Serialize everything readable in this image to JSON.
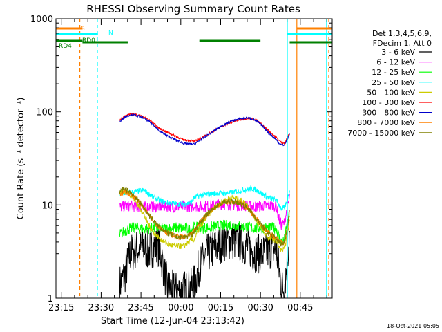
{
  "chart_data": {
    "type": "line",
    "title": "RHESSI Observing Summary Count Rates",
    "xlabel": "Start Time (12-Jun-04 23:13:42)",
    "ylabel": "Count Rate (s⁻¹ detector⁻¹)",
    "yscale": "log",
    "ylim": [
      1,
      1000
    ],
    "xlim_minutes": [
      -2,
      102
    ],
    "y_ticks": [
      {
        "value": 1,
        "label": "1"
      },
      {
        "value": 10,
        "label": "10"
      },
      {
        "value": 100,
        "label": "100"
      },
      {
        "value": 1000,
        "label": "1000"
      }
    ],
    "x_ticks": [
      {
        "minutes": 0,
        "label": "23:15"
      },
      {
        "minutes": 15,
        "label": "23:30"
      },
      {
        "minutes": 30,
        "label": "23:45"
      },
      {
        "minutes": 45,
        "label": "00:00"
      },
      {
        "minutes": 60,
        "label": "00:15"
      },
      {
        "minutes": 75,
        "label": "00:30"
      },
      {
        "minutes": 90,
        "label": "00:45"
      }
    ],
    "legend_header": [
      "Det 1,3,4,5,6,9,",
      "FDecim 1, Att 0"
    ],
    "series": [
      {
        "name": "3 - 6 keV",
        "color": "#000000",
        "x": [
          22,
          24,
          26,
          28,
          31,
          33,
          35,
          37,
          40,
          43,
          46,
          49,
          50,
          52,
          55,
          58,
          61,
          64,
          67,
          70,
          72,
          74,
          76,
          78,
          80,
          81,
          82,
          83,
          84,
          85,
          86
        ],
        "y": [
          1.4,
          1.8,
          3,
          3.3,
          3.5,
          3.2,
          3.6,
          3.5,
          1.3,
          1.2,
          1.2,
          1.3,
          1.4,
          2.2,
          3,
          3.5,
          4,
          4.2,
          4,
          3.6,
          3.2,
          3,
          3,
          3.2,
          3.4,
          3.2,
          2,
          1.3,
          1.3,
          2.5,
          5
        ]
      },
      {
        "name": "6 - 12 keV",
        "color": "#ff00ff",
        "x": [
          22,
          24,
          26,
          28,
          31,
          33,
          35,
          37,
          40,
          43,
          46,
          49,
          50,
          52,
          55,
          58,
          61,
          64,
          67,
          70,
          72,
          74,
          76,
          78,
          80,
          81,
          82,
          83,
          84,
          85,
          86
        ],
        "y": [
          9.5,
          9.7,
          9.8,
          9.6,
          9.5,
          9.6,
          9.5,
          9.6,
          9.6,
          9.5,
          9.7,
          9.6,
          9.8,
          9.6,
          9.7,
          10,
          10.2,
          10.1,
          9.9,
          9.8,
          9.7,
          9.6,
          9.8,
          9.9,
          9.8,
          9.7,
          7,
          6,
          6.5,
          9,
          12
        ]
      },
      {
        "name": "12 - 25 keV",
        "color": "#00ff00",
        "x": [
          22,
          24,
          26,
          28,
          31,
          33,
          35,
          37,
          40,
          43,
          46,
          49,
          50,
          52,
          55,
          58,
          61,
          64,
          67,
          70,
          72,
          74,
          76,
          78,
          80,
          81,
          82,
          83,
          84,
          85,
          86
        ],
        "y": [
          4.8,
          5.3,
          5.6,
          5.7,
          5.5,
          5.6,
          5.7,
          5.5,
          5.6,
          5.7,
          5.6,
          5.5,
          5.8,
          5.6,
          5.7,
          5.9,
          6,
          6.1,
          5.9,
          5.8,
          5.7,
          5.6,
          5.7,
          5.6,
          5.7,
          5.6,
          4.5,
          4,
          4.2,
          6,
          8
        ]
      },
      {
        "name": "25 - 50 keV",
        "color": "#00ffff",
        "x": [
          22,
          24,
          26,
          28,
          31,
          33,
          35,
          37,
          40,
          43,
          46,
          49,
          50,
          52,
          55,
          58,
          61,
          64,
          67,
          70,
          72,
          74,
          76,
          78,
          80,
          81,
          82,
          83,
          84,
          85,
          86
        ],
        "y": [
          13,
          13.4,
          13.6,
          14,
          14.4,
          13.2,
          12,
          11.2,
          10.6,
          10.3,
          10.2,
          10.6,
          12,
          12.6,
          13,
          13.3,
          13.4,
          13.6,
          14.2,
          14.8,
          15,
          14.2,
          13,
          12,
          11.5,
          11.2,
          10,
          9,
          9.4,
          11,
          15
        ]
      },
      {
        "name": "50 - 100 keV",
        "color": "#cccc00",
        "x": [
          22,
          24,
          26,
          28,
          31,
          33,
          35,
          37,
          40,
          43,
          46,
          49,
          50,
          52,
          55,
          58,
          61,
          64,
          67,
          70,
          72,
          74,
          76,
          78,
          80,
          81,
          82,
          83,
          84,
          85,
          86
        ],
        "y": [
          13.5,
          14,
          13,
          11,
          8,
          6,
          5,
          4.4,
          3.8,
          3.6,
          3.6,
          4.2,
          4.2,
          5.6,
          7.6,
          9.6,
          11,
          12,
          11.6,
          10,
          8,
          6.4,
          5.2,
          4.4,
          4.2,
          4.1,
          3.5,
          3.2,
          3.4,
          4.6,
          7
        ]
      },
      {
        "name": "100 - 300 keV",
        "color": "#ff0000",
        "x": [
          22,
          24,
          26,
          28,
          31,
          33,
          35,
          37,
          40,
          43,
          46,
          49,
          50,
          52,
          55,
          58,
          61,
          64,
          67,
          70,
          72,
          74,
          76,
          78,
          80,
          81,
          82,
          83,
          84,
          85,
          86
        ],
        "y": [
          82,
          90,
          95,
          94,
          88,
          82,
          74,
          66,
          60,
          55,
          50,
          49,
          48,
          51,
          57,
          64,
          71,
          77,
          82,
          85,
          84,
          79,
          71,
          63,
          56,
          53,
          49,
          47,
          46,
          52,
          60
        ]
      },
      {
        "name": "300 - 800 keV",
        "color": "#0000cc",
        "x": [
          22,
          24,
          26,
          28,
          31,
          33,
          35,
          37,
          40,
          43,
          46,
          49,
          50,
          52,
          55,
          58,
          61,
          64,
          67,
          70,
          72,
          74,
          76,
          78,
          80,
          81,
          82,
          83,
          84,
          85,
          86
        ],
        "y": [
          78,
          88,
          93,
          92,
          86,
          79,
          71,
          62,
          55,
          50,
          46,
          45,
          45,
          49,
          56,
          64,
          72,
          79,
          84,
          86,
          84,
          78,
          69,
          60,
          53,
          50,
          46,
          44,
          44,
          50,
          58
        ]
      },
      {
        "name": "800 - 7000 keV",
        "color": "#ff8000",
        "x": [
          22,
          24,
          26,
          28,
          31,
          33,
          35,
          37,
          40,
          43,
          46,
          49,
          50,
          52,
          55,
          58,
          61,
          64,
          67,
          70,
          72,
          74,
          76,
          78,
          80,
          81,
          82,
          83,
          84,
          85,
          86
        ],
        "y": [
          13.2,
          13.6,
          13.1,
          12,
          9.4,
          7.8,
          6.6,
          5.8,
          5,
          4.6,
          4.5,
          4.8,
          5.2,
          6.4,
          8,
          9.6,
          10.6,
          11,
          10.6,
          9.4,
          8,
          6.8,
          5.8,
          5,
          4.6,
          4.4,
          4,
          3.9,
          4,
          5.5,
          9
        ]
      },
      {
        "name": "7000 - 15000 keV",
        "color": "#808000",
        "x": [
          22,
          24,
          26,
          28,
          31,
          33,
          35,
          37,
          40,
          43,
          46,
          49,
          50,
          52,
          55,
          58,
          61,
          64,
          67,
          70,
          72,
          74,
          76,
          78,
          80,
          81,
          82,
          83,
          84,
          85,
          86
        ],
        "y": [
          14,
          14.6,
          13.8,
          12,
          9.4,
          7.8,
          6.6,
          5.8,
          5,
          4.6,
          4.5,
          4.8,
          5.2,
          6.4,
          8,
          9.6,
          10.6,
          11,
          10.6,
          9.4,
          8,
          6.8,
          5.8,
          5,
          4.6,
          4.4,
          4,
          3.8,
          4,
          5.5,
          9
        ]
      }
    ],
    "vertical_markers": [
      {
        "minutes": 7,
        "color": "#ff8000",
        "style": "dashed"
      },
      {
        "minutes": 13.6,
        "color": "#00ffff",
        "style": "dashed"
      },
      {
        "minutes": 85.1,
        "color": "#00ffff",
        "style": "solid"
      },
      {
        "minutes": 88.7,
        "color": "#ff8000",
        "style": "solid"
      },
      {
        "minutes": 99.9,
        "color": "#00ffff",
        "style": "solid"
      },
      {
        "minutes": 100.7,
        "color": "#ff8000",
        "style": "dashed"
      }
    ],
    "flag_bars": [
      {
        "label": "S",
        "color": "#ff8000",
        "segments": [
          [
            -2,
            8
          ],
          [
            88.6,
            102
          ]
        ]
      },
      {
        "label": "N",
        "color": "#00ffff",
        "segments": [
          [
            -2,
            13.8
          ],
          [
            85,
            102
          ]
        ]
      },
      {
        "label": "RD0",
        "color": "#008000",
        "segments": [
          [
            -2,
            8
          ],
          [
            8,
            25
          ],
          [
            52,
            75
          ],
          [
            86,
            102
          ]
        ]
      },
      {
        "label": "RD4",
        "color": "#008000",
        "segments": [
          [
            8,
            25
          ]
        ]
      }
    ],
    "footer_timestamp": "18-Oct-2021 05:05"
  }
}
